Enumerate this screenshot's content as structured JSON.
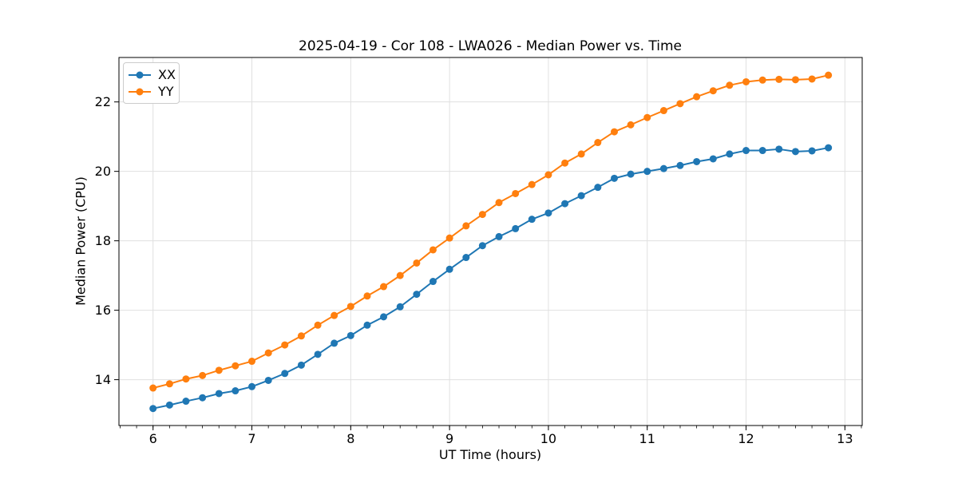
{
  "title": "2025-04-19 - Cor 108 - LWA026 - Median Power vs. Time",
  "chart_data": {
    "type": "line",
    "title": "2025-04-19 - Cor 108 - LWA026 - Median Power vs. Time",
    "xlabel": "UT Time (hours)",
    "ylabel": "Median Power (CPU)",
    "legend_position": "upper left",
    "grid": true,
    "marker": "circle",
    "x": [
      6.0,
      6.167,
      6.333,
      6.5,
      6.667,
      6.833,
      7.0,
      7.167,
      7.333,
      7.5,
      7.667,
      7.833,
      8.0,
      8.167,
      8.333,
      8.5,
      8.667,
      8.833,
      9.0,
      9.167,
      9.333,
      9.5,
      9.667,
      9.833,
      10.0,
      10.167,
      10.333,
      10.5,
      10.667,
      10.833,
      11.0,
      11.167,
      11.333,
      11.5,
      11.667,
      11.833,
      12.0,
      12.167,
      12.333,
      12.5,
      12.667,
      12.833
    ],
    "series": [
      {
        "name": "XX",
        "color": "#1f77b4",
        "values": [
          13.17,
          13.27,
          13.38,
          13.48,
          13.6,
          13.68,
          13.8,
          13.98,
          14.18,
          14.42,
          14.73,
          15.05,
          15.27,
          15.57,
          15.81,
          16.1,
          16.46,
          16.83,
          17.18,
          17.52,
          17.86,
          18.12,
          18.35,
          18.62,
          18.8,
          19.07,
          19.3,
          19.54,
          19.8,
          19.92,
          20.0,
          20.08,
          20.17,
          20.28,
          20.36,
          20.5,
          20.6,
          20.6,
          20.64,
          20.57,
          20.59,
          20.68
        ]
      },
      {
        "name": "YY",
        "color": "#ff7f0e",
        "values": [
          13.76,
          13.88,
          14.02,
          14.12,
          14.27,
          14.4,
          14.53,
          14.77,
          15.0,
          15.26,
          15.57,
          15.85,
          16.11,
          16.41,
          16.68,
          17.0,
          17.36,
          17.74,
          18.08,
          18.43,
          18.76,
          19.1,
          19.36,
          19.62,
          19.9,
          20.24,
          20.5,
          20.83,
          21.14,
          21.34,
          21.55,
          21.75,
          21.95,
          22.15,
          22.32,
          22.48,
          22.58,
          22.63,
          22.65,
          22.64,
          22.66,
          22.77
        ]
      }
    ],
    "xlim": [
      5.655,
      13.175
    ],
    "ylim": [
      12.68,
      23.28
    ],
    "xticks": [
      6,
      7,
      8,
      9,
      10,
      11,
      12,
      13
    ],
    "yticks": [
      14,
      16,
      18,
      20,
      22
    ],
    "x_minor_tick_step": 0.1666667,
    "grid_color": "#e0e0e0",
    "spine_color": "#000000",
    "background": "#ffffff"
  }
}
